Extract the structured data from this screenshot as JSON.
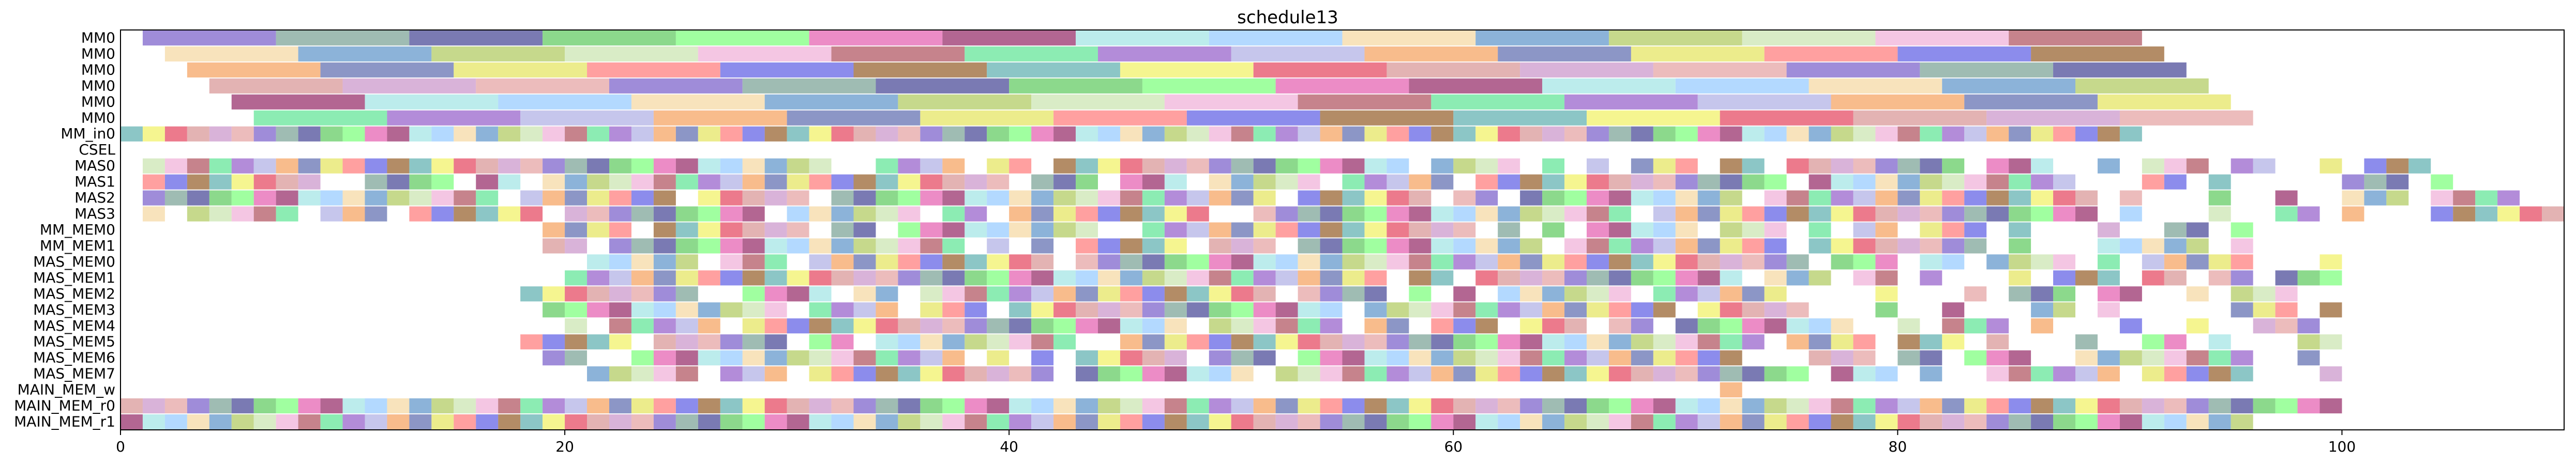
{
  "chart_data": {
    "type": "gantt",
    "title": "schedule13",
    "xlabel": "",
    "ylabel": "",
    "xlim": [
      0,
      110
    ],
    "xticks": [
      0,
      20,
      40,
      60,
      80,
      100
    ],
    "tick_labels": [
      "0",
      "20",
      "40",
      "60",
      "80",
      "100"
    ],
    "grid": false,
    "legend": "none",
    "rows": [
      {
        "label": "MM0",
        "start": 1.0,
        "step": 6.0,
        "count": 15,
        "dur": 6.0
      },
      {
        "label": "MM0",
        "start": 2.0,
        "step": 6.0,
        "count": 15,
        "dur": 6.0
      },
      {
        "label": "MM0",
        "start": 3.0,
        "step": 6.0,
        "count": 15,
        "dur": 6.0
      },
      {
        "label": "MM0",
        "start": 4.0,
        "step": 6.0,
        "count": 15,
        "dur": 6.0
      },
      {
        "label": "MM0",
        "start": 5.0,
        "step": 6.0,
        "count": 15,
        "dur": 6.0
      },
      {
        "label": "MM0",
        "start": 6.0,
        "step": 6.0,
        "count": 15,
        "dur": 6.0
      },
      {
        "label": "MM_in0",
        "start": 0.0,
        "step": 1.0,
        "count": 91,
        "dur": 1.0
      },
      {
        "label": "CSEL",
        "start": 0.0,
        "step": 1.0,
        "count": 0,
        "dur": 1.0
      },
      {
        "label": "MAS0",
        "start": 1.0,
        "step": 1.0,
        "count": 106,
        "dur": 1.0
      },
      {
        "label": "MAS1",
        "start": 1.0,
        "step": 1.0,
        "count": 106,
        "dur": 1.0
      },
      {
        "label": "MAS2",
        "start": 1.0,
        "step": 1.0,
        "count": 107,
        "dur": 1.0
      },
      {
        "label": "MAS3",
        "start": 1.0,
        "step": 1.0,
        "count": 109,
        "dur": 1.0
      },
      {
        "label": "MM_MEM0",
        "start": 19.0,
        "step": 1.0,
        "count": 80,
        "dur": 1.0
      },
      {
        "label": "MM_MEM1",
        "start": 19.0,
        "step": 1.0,
        "count": 80,
        "dur": 1.0
      },
      {
        "label": "MAS_MEM0",
        "start": 20.0,
        "step": 1.0,
        "count": 80,
        "dur": 1.0
      },
      {
        "label": "MAS_MEM1",
        "start": 20.0,
        "step": 1.0,
        "count": 80,
        "dur": 1.0
      },
      {
        "label": "MAS_MEM2",
        "start": 18.0,
        "step": 1.0,
        "count": 82,
        "dur": 1.0
      },
      {
        "label": "MAS_MEM3",
        "start": 19.0,
        "step": 1.0,
        "count": 81,
        "dur": 1.0
      },
      {
        "label": "MAS_MEM4",
        "start": 20.0,
        "step": 1.0,
        "count": 80,
        "dur": 1.0
      },
      {
        "label": "MAS_MEM5",
        "start": 18.0,
        "step": 1.0,
        "count": 82,
        "dur": 1.0
      },
      {
        "label": "MAS_MEM6",
        "start": 19.0,
        "step": 1.0,
        "count": 80,
        "dur": 1.0
      },
      {
        "label": "MAS_MEM7",
        "start": 20.0,
        "step": 1.0,
        "count": 80,
        "dur": 1.0
      },
      {
        "label": "MAIN_MEM_w",
        "start": 72.0,
        "step": 1.0,
        "count": 1,
        "dur": 1.0
      },
      {
        "label": "MAIN_MEM_r0",
        "start": 0.0,
        "step": 1.0,
        "count": 100,
        "dur": 1.0
      },
      {
        "label": "MAIN_MEM_r1",
        "start": 0.0,
        "step": 1.0,
        "count": 96,
        "dur": 1.0
      }
    ],
    "colors": [
      "#7f66cc",
      "#f0b3d9",
      "#e64d66",
      "#f5d9a6",
      "#6666e6",
      "#e666b3",
      "#f5a666",
      "#7fa699",
      "#b35966",
      "#d99999",
      "#6699cc",
      "#996633",
      "#99336e",
      "#6673b3",
      "#4d4d99",
      "#66e699",
      "#cc99cc",
      "#b3cc66",
      "#66b3b3",
      "#a6e6e6",
      "#e6e666",
      "#66cc66",
      "#9966cc",
      "#e6a6a6",
      "#cce6b3",
      "#f2f26b",
      "#99ccff",
      "#ff8080",
      "#80ff80",
      "#b3b3e6"
    ]
  }
}
